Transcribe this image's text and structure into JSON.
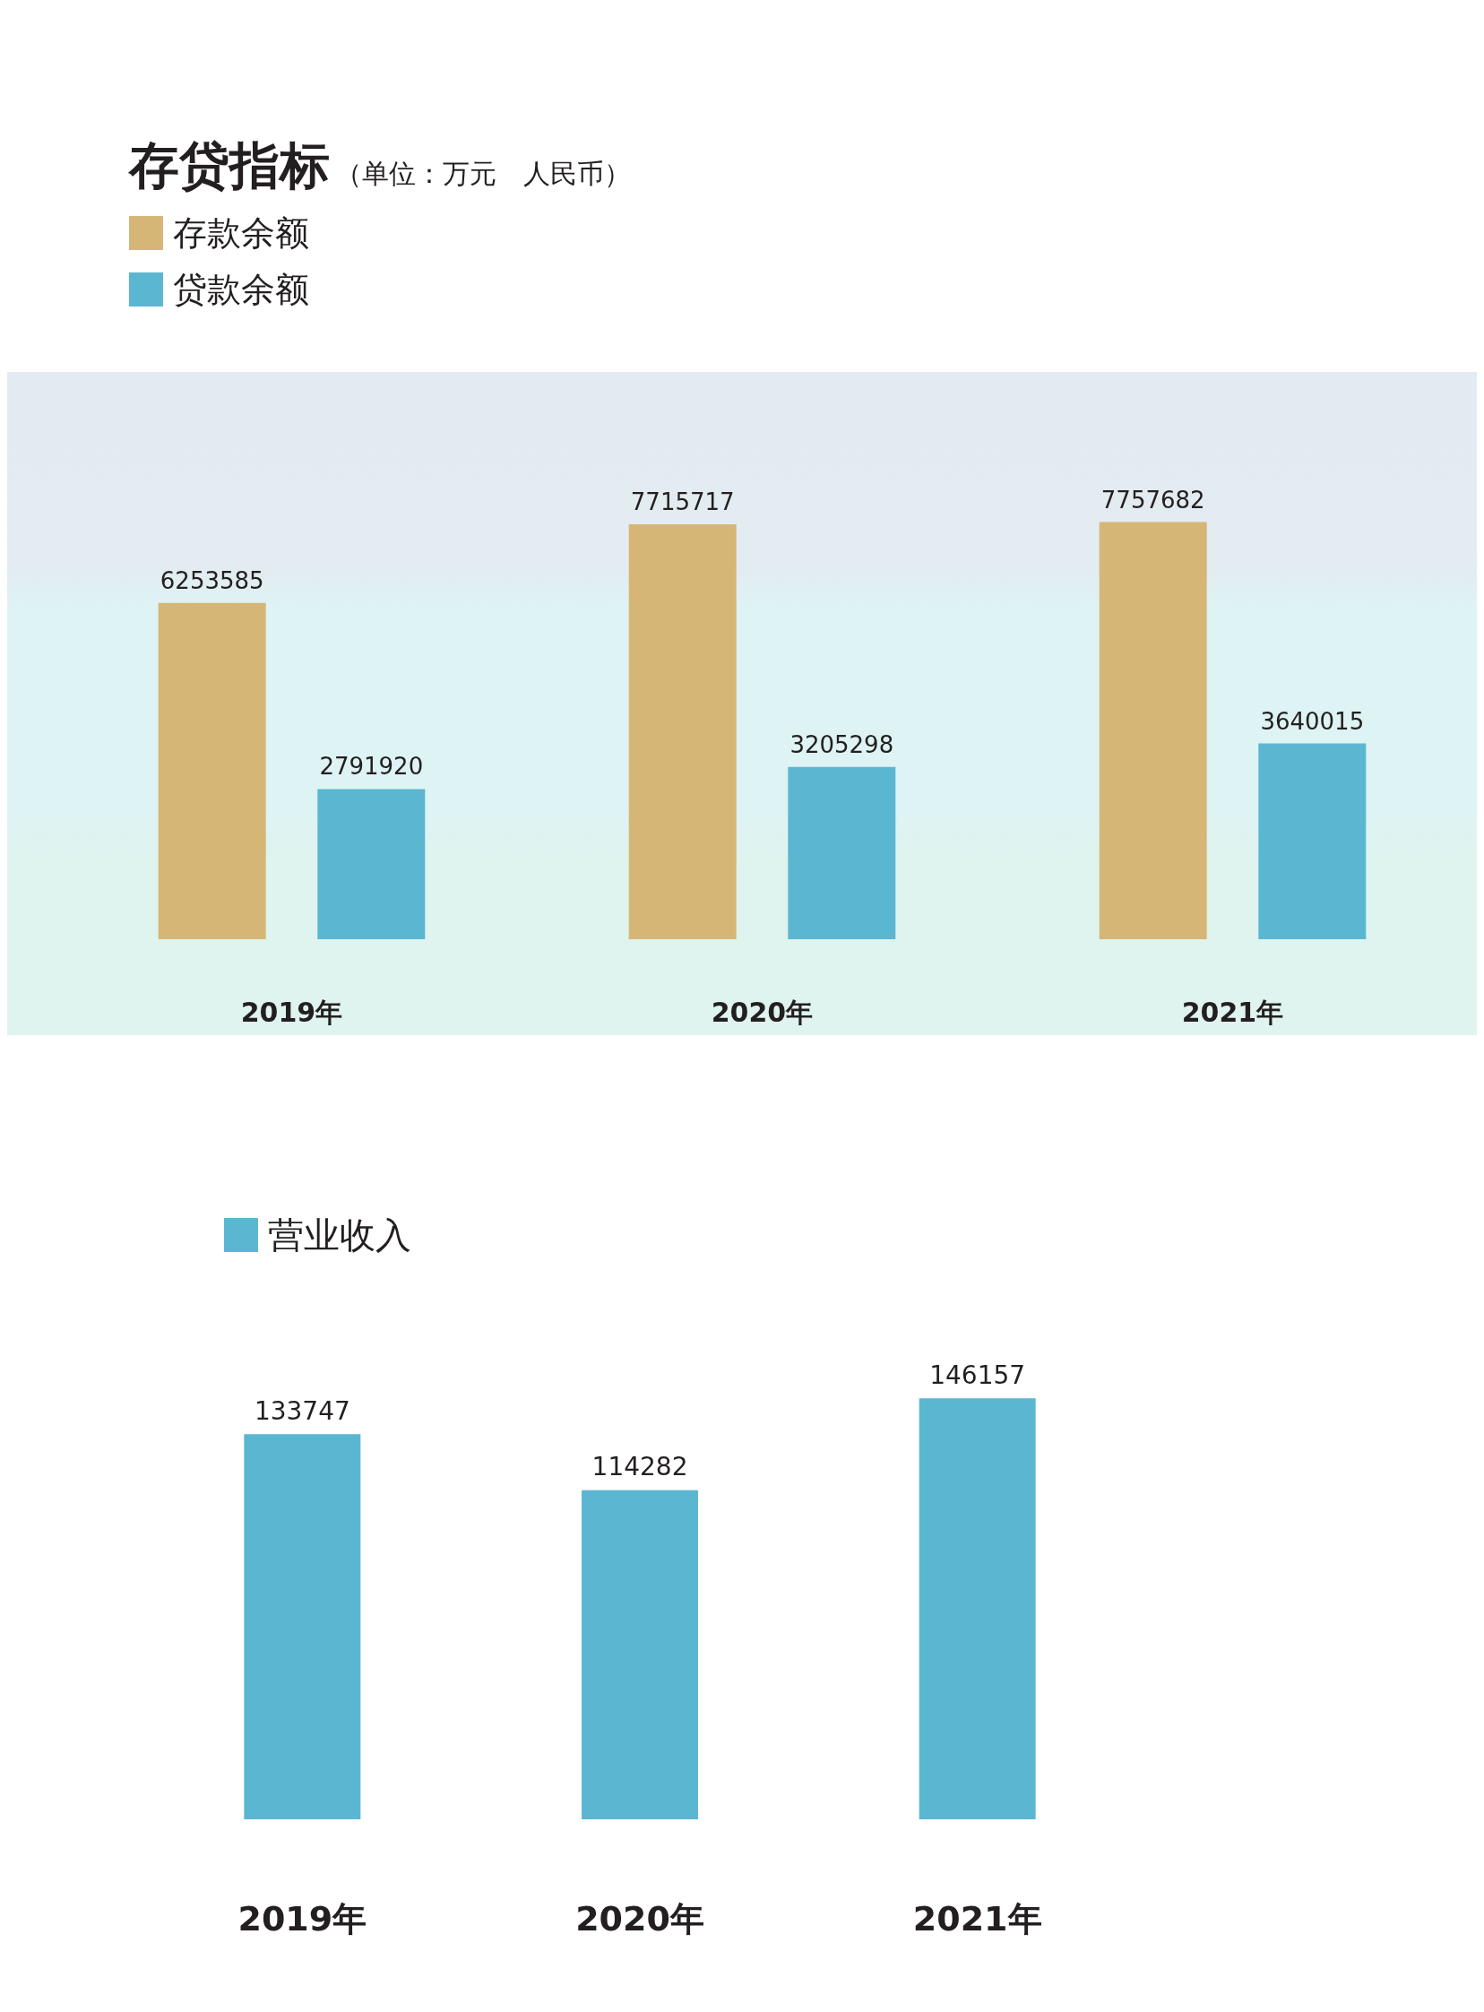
{
  "chart_data": [
    {
      "type": "bar",
      "title": "存贷指标",
      "subtitle": "（单位：万元　人民币）",
      "categories": [
        "2019年",
        "2020年",
        "2021年"
      ],
      "series": [
        {
          "name": "存款余额",
          "color": "#d6b676",
          "values": [
            6253585,
            7715717,
            7757682
          ]
        },
        {
          "name": "贷款余额",
          "color": "#5bb7d1",
          "values": [
            2791920,
            3205298,
            3640015
          ]
        }
      ],
      "data_labels": true,
      "legend": "top left",
      "tick_labels": "x",
      "grid": false
    },
    {
      "type": "bar",
      "categories": [
        "2019年",
        "2020年",
        "2021年"
      ],
      "series": [
        {
          "name": "营业收入",
          "color": "#5bb7d1",
          "values": [
            133747,
            114282,
            146157
          ]
        }
      ],
      "data_labels": true,
      "legend": "top left",
      "tick_labels": "x",
      "grid": false
    }
  ]
}
